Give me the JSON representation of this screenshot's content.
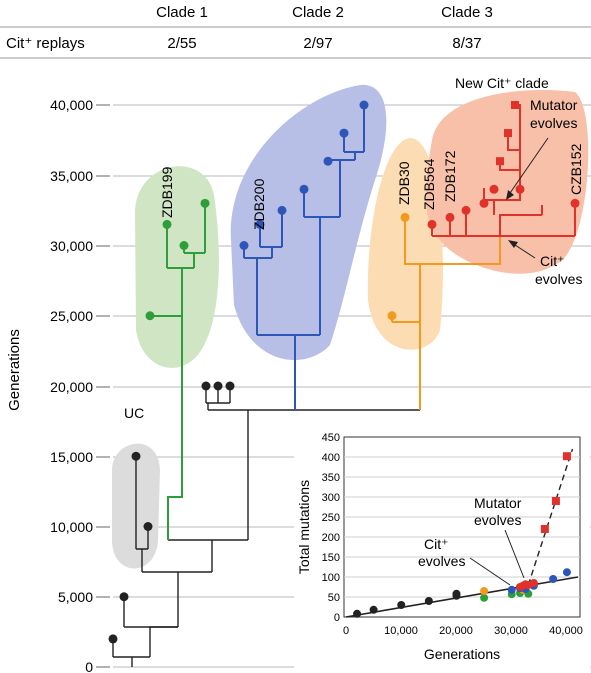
{
  "header": {
    "row_label": "Cit⁺ replays",
    "clades": [
      {
        "name": "Clade 1",
        "replays": "2/55"
      },
      {
        "name": "Clade 2",
        "replays": "2/97"
      },
      {
        "name": "Clade 3",
        "replays": "8/37"
      }
    ]
  },
  "chart_data": [
    {
      "type": "tree",
      "ylabel": "Generations",
      "ylim": [
        0,
        40000
      ],
      "yticks": [
        "0",
        "5,000",
        "10,000",
        "15,000",
        "20,000",
        "25,000",
        "30,000",
        "35,000",
        "40,000"
      ],
      "grid": true,
      "labels": {
        "uc": "UC",
        "zdb199": "ZDB199",
        "zdb200": "ZDB200",
        "zdb30": "ZDB30",
        "zdb564": "ZDB564",
        "zdb172": "ZDB172",
        "czb152": "CZB152",
        "new_clade": "New Cit⁺ clade",
        "mutator_line1": "Mutator",
        "mutator_line2": "evolves",
        "cit_line1": "Cit⁺",
        "cit_line2": "evolves"
      },
      "colors": {
        "uc": "#222222",
        "clade1": "#2e9e3a",
        "clade2": "#2e55b8",
        "clade3": "#f2991e",
        "new_cit": "#e0322b",
        "clade1_bg": "#cfe5c3",
        "clade2_bg": "#b8bfe6",
        "clade3_bg": "#fcdcb2",
        "new_cit_bg": "#f8c0a8",
        "uc_bg": "#dcdcdc"
      },
      "samples": {
        "black": [
          {
            "name": "base",
            "generation": 2000
          },
          {
            "name": "g5k",
            "generation": 5000
          },
          {
            "name": "uc1",
            "generation": 10000
          },
          {
            "name": "uc2",
            "generation": 15000
          },
          {
            "name": "a",
            "generation": 20000
          },
          {
            "name": "b",
            "generation": 20000
          },
          {
            "name": "c",
            "generation": 20000
          }
        ],
        "clade1": [
          {
            "name": "c1a",
            "generation": 25000
          },
          {
            "name": "ZDB199",
            "generation": 31500
          },
          {
            "name": "c1b",
            "generation": 30000
          },
          {
            "name": "c1c",
            "generation": 33000
          }
        ],
        "clade2": [
          {
            "name": "c2a",
            "generation": 30000
          },
          {
            "name": "ZDB200",
            "generation": 31500
          },
          {
            "name": "c2b",
            "generation": 32500
          },
          {
            "name": "c2c",
            "generation": 34000
          },
          {
            "name": "c2d",
            "generation": 36000
          },
          {
            "name": "c2e",
            "generation": 38000
          },
          {
            "name": "c2f",
            "generation": 40000
          }
        ],
        "clade3": [
          {
            "name": "c3a",
            "generation": 25000
          },
          {
            "name": "ZDB30",
            "generation": 32000
          }
        ],
        "new_cit": [
          {
            "name": "ZDB564",
            "generation": 31500
          },
          {
            "name": "ZDB172",
            "generation": 32000
          },
          {
            "name": "n1",
            "generation": 32500
          },
          {
            "name": "n2",
            "generation": 34000
          },
          {
            "name": "n3",
            "generation": 34000
          },
          {
            "name": "n4",
            "generation": 33000
          },
          {
            "name": "CZB152",
            "generation": 33000
          },
          {
            "name": "m1",
            "generation": 36000
          },
          {
            "name": "m2",
            "generation": 38000
          },
          {
            "name": "m3",
            "generation": 40000
          }
        ]
      }
    },
    {
      "type": "scatter",
      "xlabel": "Generations",
      "ylabel": "Total mutations",
      "xlim": [
        0,
        42000
      ],
      "ylim": [
        0,
        450
      ],
      "xticks": [
        "0",
        "10,000",
        "20,000",
        "30,000",
        "40,000"
      ],
      "yticks": [
        "0",
        "50",
        "100",
        "150",
        "200",
        "250",
        "300",
        "350",
        "400",
        "450"
      ],
      "annotations": {
        "mutator_line1": "Mutator",
        "mutator_line2": "evolves",
        "cit_line1": "Cit⁺",
        "cit_line2": "evolves"
      },
      "trend": {
        "solid": [
          [
            0,
            0
          ],
          [
            42000,
            100
          ]
        ],
        "dashed": [
          [
            33000,
            80
          ],
          [
            41000,
            420
          ]
        ]
      },
      "series": [
        {
          "color": "black",
          "points": [
            [
              2000,
              8
            ],
            [
              5000,
              18
            ],
            [
              10000,
              30
            ],
            [
              15000,
              40
            ],
            [
              20000,
              53
            ],
            [
              20000,
              58
            ]
          ]
        },
        {
          "color": "green",
          "points": [
            [
              25000,
              48
            ],
            [
              30000,
              57
            ],
            [
              31500,
              60
            ],
            [
              33000,
              58
            ]
          ]
        },
        {
          "color": "orange",
          "points": [
            [
              25000,
              65
            ],
            [
              32000,
              68
            ]
          ]
        },
        {
          "color": "blue",
          "points": [
            [
              30000,
              68
            ],
            [
              31500,
              72
            ],
            [
              32500,
              70
            ],
            [
              40000,
              112
            ],
            [
              37500,
              95
            ],
            [
              34000,
              78
            ]
          ]
        },
        {
          "color": "red",
          "points": [
            [
              31500,
              75
            ],
            [
              32000,
              78
            ],
            [
              32500,
              82
            ],
            [
              34000,
              85
            ],
            [
              33000,
              80
            ],
            [
              36000,
              220
            ],
            [
              38000,
              290
            ],
            [
              40000,
              402
            ]
          ]
        }
      ]
    }
  ]
}
